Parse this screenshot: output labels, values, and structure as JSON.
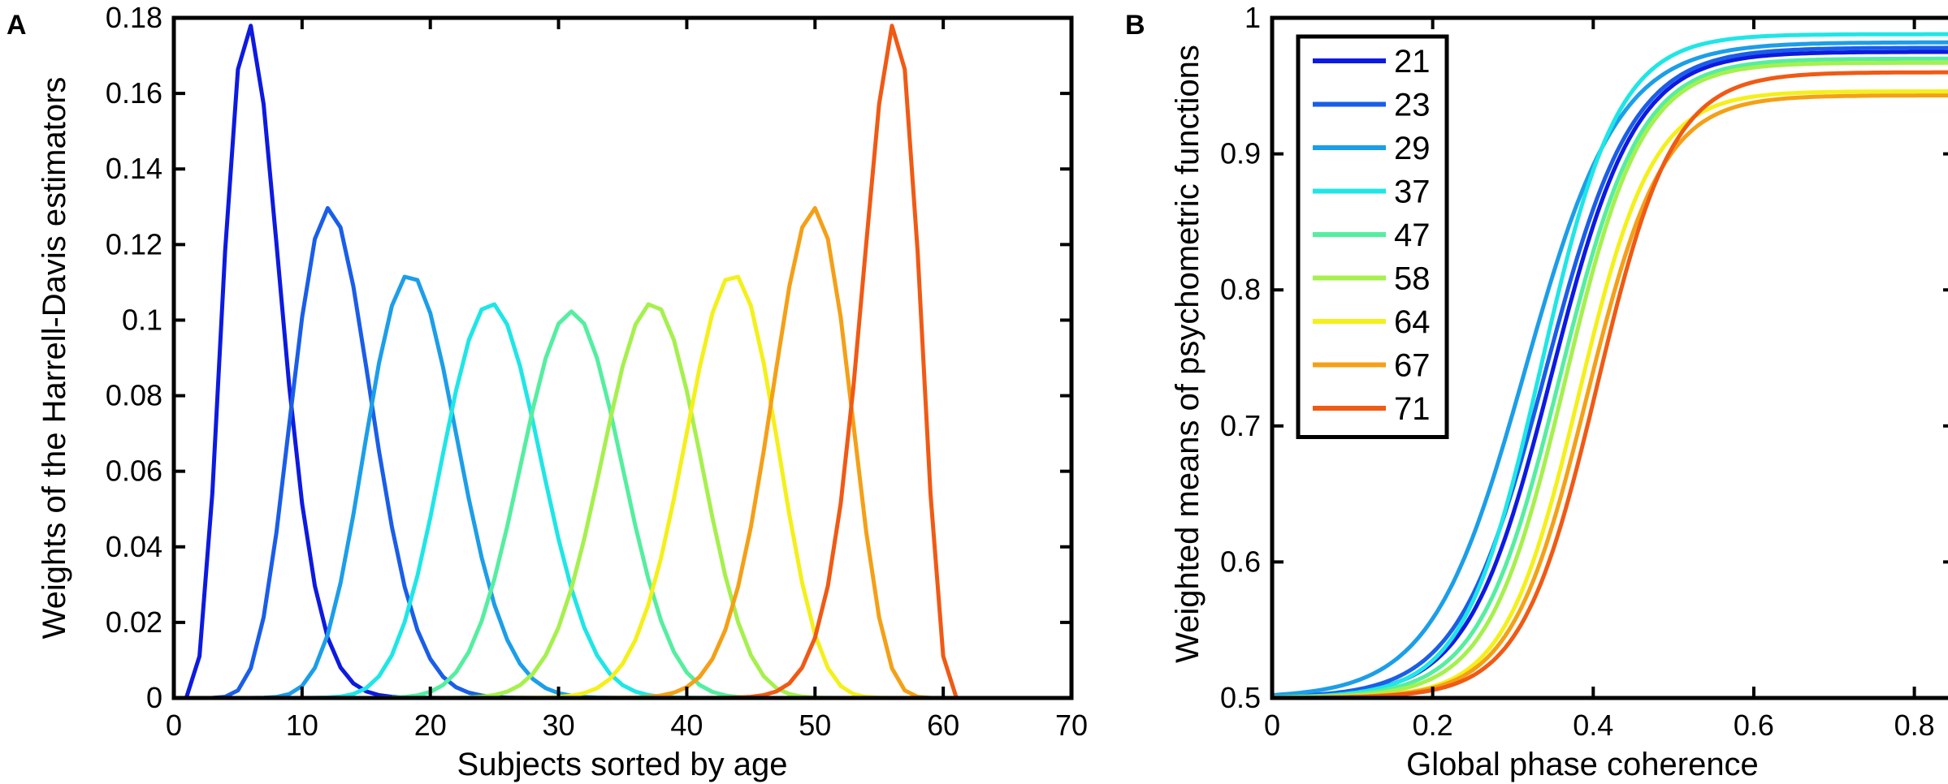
{
  "chart_data": [
    {
      "panel": "A",
      "type": "line",
      "title": "",
      "xlabel": "Subjects sorted by age",
      "ylabel": "Weights of the Harrell-Davis estimators",
      "xlim": [
        0,
        70
      ],
      "ylim": [
        0,
        0.18
      ],
      "xticks": [
        0,
        10,
        20,
        30,
        40,
        50,
        60,
        70
      ],
      "yticks": [
        0,
        0.02,
        0.04,
        0.06,
        0.08,
        0.1,
        0.12,
        0.14,
        0.16,
        0.18
      ],
      "xtick_labels": [
        "0",
        "10",
        "20",
        "30",
        "40",
        "50",
        "60",
        "70"
      ],
      "ytick_labels": [
        "0",
        "0.02",
        "0.04",
        "0.06",
        "0.08",
        "0.1",
        "0.12",
        "0.14",
        "0.16",
        "0.18"
      ],
      "n_subjects": 61,
      "grid": false,
      "series": [
        {
          "name": "21",
          "color": "#0d1ae0",
          "peak_x": 6,
          "peak_y": 0.177
        },
        {
          "name": "23",
          "color": "#1a5ee8",
          "peak_x": 12,
          "peak_y": 0.128
        },
        {
          "name": "29",
          "color": "#1c9ee8",
          "peak_x": 19,
          "peak_y": 0.111
        },
        {
          "name": "37",
          "color": "#1fe6e6",
          "peak_x": 25,
          "peak_y": 0.104
        },
        {
          "name": "47",
          "color": "#55eea0",
          "peak_x": 31.5,
          "peak_y": 0.101
        },
        {
          "name": "58",
          "color": "#a6f04e",
          "peak_x": 38,
          "peak_y": 0.104
        },
        {
          "name": "64",
          "color": "#f4f01a",
          "peak_x": 44,
          "peak_y": 0.111
        },
        {
          "name": "67",
          "color": "#f4a017",
          "peak_x": 51,
          "peak_y": 0.128
        },
        {
          "name": "71",
          "color": "#f05a14",
          "peak_x": 57,
          "peak_y": 0.177
        }
      ]
    },
    {
      "panel": "B",
      "type": "line",
      "title": "",
      "xlabel": "Global phase coherence",
      "ylabel": "Weighted means of psychometric functions",
      "xlim": [
        0,
        0.85
      ],
      "ylim": [
        0.5,
        1
      ],
      "xticks": [
        0,
        0.2,
        0.4,
        0.6,
        0.8
      ],
      "yticks": [
        0.5,
        0.6,
        0.7,
        0.8,
        0.9,
        1
      ],
      "xtick_labels": [
        "0",
        "0.2",
        "0.4",
        "0.6",
        "0.8"
      ],
      "ytick_labels": [
        "0.5",
        "0.6",
        "0.7",
        "0.8",
        "0.9",
        "1"
      ],
      "legend_position": "top-left",
      "grid": false,
      "series": [
        {
          "name": "21",
          "color": "#0d1ae0",
          "threshold": 0.348,
          "slope": 0.052,
          "asymptote": 0.975
        },
        {
          "name": "23",
          "color": "#1a5ee8",
          "threshold": 0.34,
          "slope": 0.054,
          "asymptote": 0.978
        },
        {
          "name": "29",
          "color": "#1c9ee8",
          "threshold": 0.315,
          "slope": 0.058,
          "asymptote": 0.982
        },
        {
          "name": "37",
          "color": "#1fe6e6",
          "threshold": 0.335,
          "slope": 0.048,
          "asymptote": 0.988
        },
        {
          "name": "47",
          "color": "#55eea0",
          "threshold": 0.358,
          "slope": 0.05,
          "asymptote": 0.97
        },
        {
          "name": "58",
          "color": "#a6f04e",
          "threshold": 0.365,
          "slope": 0.048,
          "asymptote": 0.967
        },
        {
          "name": "64",
          "color": "#f4f01a",
          "threshold": 0.382,
          "slope": 0.046,
          "asymptote": 0.946
        },
        {
          "name": "67",
          "color": "#f4a017",
          "threshold": 0.392,
          "slope": 0.047,
          "asymptote": 0.943
        },
        {
          "name": "71",
          "color": "#f05a14",
          "threshold": 0.405,
          "slope": 0.047,
          "asymptote": 0.96
        }
      ]
    }
  ]
}
